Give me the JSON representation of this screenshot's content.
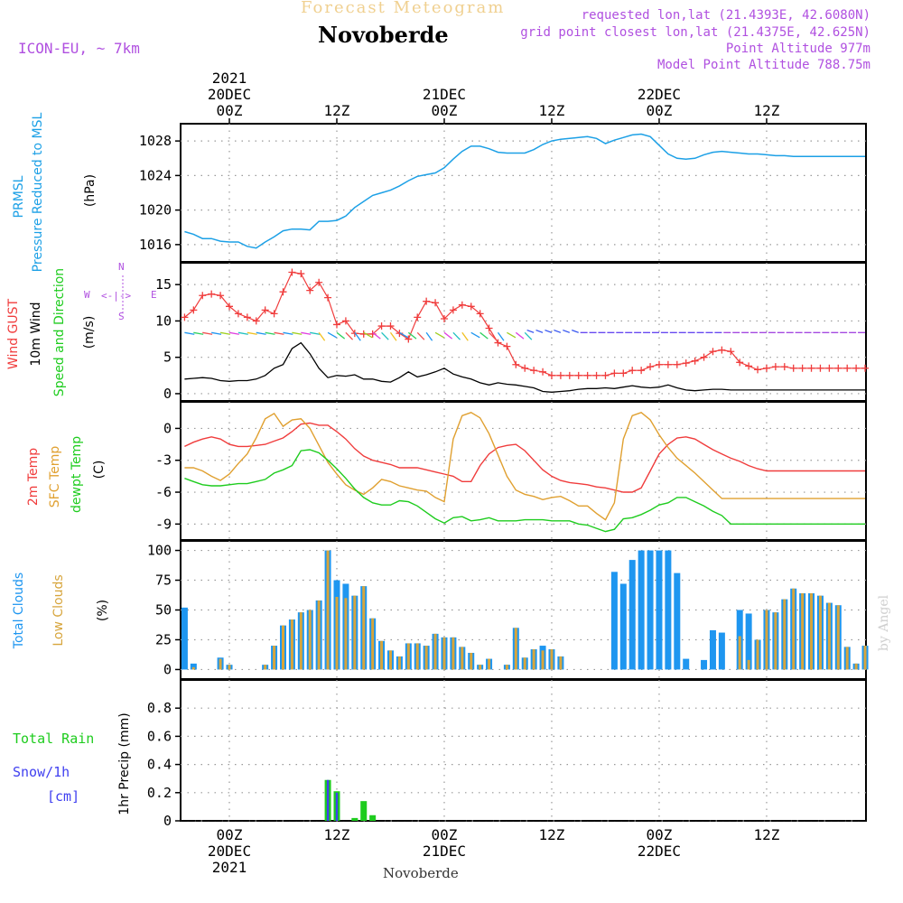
{
  "header": {
    "title_faint": "Forecast Meteogram",
    "location": "Novoberde",
    "model": "ICON-EU, ~ 7km",
    "requested": "requested lon,lat (21.4393E, 42.6080N)",
    "grid_point": "grid point closest lon,lat (21.4375E, 42.625N)",
    "altitude": "Point Altitude 977m",
    "model_altitude": "Model Point Altitude 788.75m",
    "footer": "Novoberde",
    "credit": "by Angel"
  },
  "time_axis": {
    "top_labels": [
      {
        "t": 0,
        "lines": [
          "2021",
          "20DEC",
          "00Z"
        ]
      },
      {
        "t": 12,
        "lines": [
          "12Z"
        ]
      },
      {
        "t": 24,
        "lines": [
          "21DEC",
          "00Z"
        ]
      },
      {
        "t": 36,
        "lines": [
          "12Z"
        ]
      },
      {
        "t": 48,
        "lines": [
          "22DEC",
          "00Z"
        ]
      },
      {
        "t": 60,
        "lines": [
          "12Z"
        ]
      }
    ],
    "bottom_labels": [
      {
        "t": 0,
        "lines": [
          "00Z",
          "20DEC",
          "2021"
        ]
      },
      {
        "t": 12,
        "lines": [
          "12Z"
        ]
      },
      {
        "t": 24,
        "lines": [
          "00Z",
          "21DEC"
        ]
      },
      {
        "t": 36,
        "lines": [
          "12Z"
        ]
      },
      {
        "t": 48,
        "lines": [
          "00Z",
          "22DEC"
        ]
      },
      {
        "t": 60,
        "lines": [
          "12Z"
        ]
      }
    ]
  },
  "labels": {
    "pressure": {
      "name": "PRMSL",
      "desc": "Pressure Reduced to MSL",
      "unit": "(hPa)"
    },
    "wind": {
      "gust": "Wind GUST",
      "wind10": "10m Wind",
      "dir": "Speed and Direction",
      "unit": "(m/s)",
      "compass_n": "N",
      "compass_s": "S",
      "compass_w": "W",
      "compass_e": "E"
    },
    "temp": {
      "t2m": "2m Temp",
      "sfc": "SFC Temp",
      "dew": "dewpt Temp",
      "unit": "(C)"
    },
    "clouds": {
      "total": "Total Clouds",
      "low": "Low Clouds",
      "unit": "(%)"
    },
    "precip": {
      "rain": "Total  Rain",
      "snow": "Snow/1h",
      "snow_unit": "[cm]",
      "axis": "1hr Precip (mm)"
    }
  },
  "colors": {
    "pressure": "#1ca0e6",
    "gust": "#f03c3c",
    "wind10": "#000000",
    "t2m": "#f03c3c",
    "sfc": "#e0a030",
    "dew": "#1ecc1e",
    "total_cloud": "#1e96f0",
    "low_cloud": "#d7a53c",
    "rain": "#1ecc1e",
    "snow": "#4040f0",
    "violet": "#b050e0",
    "faint": "#f0d090"
  },
  "chart_data": [
    {
      "type": "line",
      "title": "PRMSL Pressure Reduced to MSL",
      "ylabel": "(hPa)",
      "ylim": [
        1014,
        1030
      ],
      "yticks": [
        1016,
        1020,
        1024,
        1028
      ],
      "grid": true,
      "x_hours": [
        -5,
        -4,
        -3,
        -2,
        -1,
        0,
        1,
        2,
        3,
        4,
        5,
        6,
        7,
        8,
        9,
        10,
        11,
        12,
        13,
        14,
        15,
        16,
        17,
        18,
        19,
        20,
        21,
        22,
        23,
        24,
        25,
        26,
        27,
        28,
        29,
        30,
        31,
        32,
        33,
        34,
        35,
        36,
        37,
        38,
        39,
        40,
        41,
        42,
        43,
        44,
        45,
        46,
        47,
        48,
        49,
        50,
        51,
        52,
        53,
        54,
        55,
        56,
        57,
        58,
        59,
        60,
        61,
        62,
        63,
        64,
        65,
        66,
        67,
        68,
        69,
        70,
        71
      ],
      "series": [
        {
          "name": "PRMSL",
          "values": [
            1017.5,
            1017.2,
            1016.7,
            1016.7,
            1016.4,
            1016.3,
            1016.3,
            1015.8,
            1015.6,
            1016.3,
            1016.9,
            1017.6,
            1017.8,
            1017.8,
            1017.7,
            1018.7,
            1018.7,
            1018.8,
            1019.3,
            1020.3,
            1021.0,
            1021.7,
            1022.0,
            1022.3,
            1022.8,
            1023.4,
            1023.9,
            1024.1,
            1024.3,
            1024.9,
            1025.9,
            1026.8,
            1027.4,
            1027.4,
            1027.1,
            1026.7,
            1026.6,
            1026.6,
            1026.6,
            1027.0,
            1027.6,
            1028.0,
            1028.2,
            1028.3,
            1028.4,
            1028.5,
            1028.3,
            1027.7,
            1028.1,
            1028.4,
            1028.7,
            1028.8,
            1028.5,
            1027.5,
            1026.5,
            1026.0,
            1025.9,
            1026.0,
            1026.4,
            1026.7,
            1026.8,
            1026.7,
            1026.6,
            1026.5,
            1026.5,
            1026.4,
            1026.3,
            1026.3,
            1026.2,
            1026.2,
            1026.2,
            1026.2,
            1026.2,
            1026.2,
            1026.2,
            1026.2,
            1026.2
          ]
        }
      ]
    },
    {
      "type": "line",
      "title": "Wind GUST / 10m Wind Speed and Direction",
      "ylabel": "(m/s)",
      "ylim": [
        -1,
        18
      ],
      "yticks": [
        0,
        5,
        10,
        15
      ],
      "grid": true,
      "x_hours": [
        -5,
        -4,
        -3,
        -2,
        -1,
        0,
        1,
        2,
        3,
        4,
        5,
        6,
        7,
        8,
        9,
        10,
        11,
        12,
        13,
        14,
        15,
        16,
        17,
        18,
        19,
        20,
        21,
        22,
        23,
        24,
        25,
        26,
        27,
        28,
        29,
        30,
        31,
        32,
        33,
        34,
        35,
        36,
        37,
        38,
        39,
        40,
        41,
        42,
        43,
        44,
        45,
        46,
        47,
        48,
        49,
        50,
        51,
        52,
        53,
        54,
        55,
        56,
        57,
        58,
        59,
        60,
        61,
        62,
        63,
        64,
        65,
        66,
        67,
        68,
        69,
        70,
        71
      ],
      "series": [
        {
          "name": "Wind GUST",
          "values": [
            10.5,
            11.5,
            13.5,
            13.7,
            13.5,
            12.0,
            11.0,
            10.5,
            10.0,
            11.5,
            11.0,
            14.0,
            16.7,
            16.5,
            14.2,
            15.3,
            13.2,
            9.5,
            10.0,
            8.3,
            8.2,
            8.2,
            9.3,
            9.3,
            8.3,
            7.5,
            10.5,
            12.7,
            12.5,
            10.3,
            11.5,
            12.2,
            12.0,
            11.0,
            9.0,
            7.0,
            6.5,
            4.0,
            3.5,
            3.2,
            3.0,
            2.5,
            2.5,
            2.5,
            2.5,
            2.5,
            2.5,
            2.5,
            2.8,
            2.8,
            3.2,
            3.2,
            3.7,
            4.0,
            4.0,
            4.0,
            4.2,
            4.5,
            5.0,
            5.8,
            6.0,
            5.8,
            4.3,
            3.8,
            3.3,
            3.5,
            3.7,
            3.7,
            3.5,
            3.5,
            3.5,
            3.5,
            3.5,
            3.5,
            3.5,
            3.5,
            3.5
          ]
        },
        {
          "name": "10m Wind",
          "values": [
            2.0,
            2.1,
            2.2,
            2.1,
            1.8,
            1.7,
            1.8,
            1.8,
            2.0,
            2.5,
            3.5,
            4.0,
            6.2,
            7.0,
            5.5,
            3.5,
            2.2,
            2.5,
            2.4,
            2.6,
            2.0,
            2.0,
            1.7,
            1.6,
            2.2,
            3.0,
            2.3,
            2.6,
            3.0,
            3.5,
            2.7,
            2.3,
            2.0,
            1.5,
            1.2,
            1.5,
            1.3,
            1.2,
            1.0,
            0.8,
            0.3,
            0.2,
            0.3,
            0.4,
            0.6,
            0.7,
            0.7,
            0.8,
            0.7,
            0.9,
            1.1,
            0.9,
            0.8,
            0.9,
            1.2,
            0.8,
            0.5,
            0.4,
            0.5,
            0.6,
            0.6,
            0.5,
            0.5,
            0.5,
            0.5,
            0.5,
            0.5,
            0.5,
            0.5,
            0.5,
            0.5,
            0.5,
            0.5,
            0.5,
            0.5,
            0.5,
            0.5
          ]
        }
      ]
    },
    {
      "type": "line",
      "title": "2m Temp / SFC Temp / dewpt Temp",
      "ylabel": "(C)",
      "ylim": [
        -10.5,
        2.5
      ],
      "yticks": [
        -9,
        -6,
        -3,
        0
      ],
      "grid": true,
      "x_hours": [
        -5,
        -4,
        -3,
        -2,
        -1,
        0,
        1,
        2,
        3,
        4,
        5,
        6,
        7,
        8,
        9,
        10,
        11,
        12,
        13,
        14,
        15,
        16,
        17,
        18,
        19,
        20,
        21,
        22,
        23,
        24,
        25,
        26,
        27,
        28,
        29,
        30,
        31,
        32,
        33,
        34,
        35,
        36,
        37,
        38,
        39,
        40,
        41,
        42,
        43,
        44,
        45,
        46,
        47,
        48,
        49,
        50,
        51,
        52,
        53,
        54,
        55,
        56,
        57,
        58,
        59,
        60,
        61,
        62,
        63,
        64,
        65,
        66,
        67,
        68,
        69,
        70,
        71
      ],
      "series": [
        {
          "name": "2m Temp",
          "values": [
            -1.7,
            -1.3,
            -1.0,
            -0.8,
            -1.0,
            -1.5,
            -1.7,
            -1.7,
            -1.6,
            -1.5,
            -1.2,
            -0.9,
            -0.3,
            0.4,
            0.5,
            0.3,
            0.3,
            -0.3,
            -1.0,
            -1.9,
            -2.6,
            -3.0,
            -3.2,
            -3.4,
            -3.7,
            -3.7,
            -3.7,
            -3.9,
            -4.1,
            -4.3,
            -4.5,
            -5.0,
            -5.0,
            -3.5,
            -2.4,
            -1.8,
            -1.6,
            -1.5,
            -2.1,
            -3.0,
            -3.9,
            -4.5,
            -4.9,
            -5.1,
            -5.2,
            -5.3,
            -5.5,
            -5.6,
            -5.8,
            -6.0,
            -6.0,
            -5.6,
            -4.0,
            -2.4,
            -1.5,
            -0.9,
            -0.8,
            -1.0,
            -1.5,
            -2.0,
            -2.4,
            -2.8,
            -3.1,
            -3.5,
            -3.8,
            -4.0,
            -4.0,
            -4.0,
            -4.0,
            -4.0,
            -4.0,
            -4.0,
            -4.0,
            -4.0,
            -4.0,
            -4.0,
            -4.0
          ]
        },
        {
          "name": "SFC Temp",
          "values": [
            -3.7,
            -3.7,
            -4.0,
            -4.5,
            -4.9,
            -4.3,
            -3.3,
            -2.4,
            -0.9,
            0.9,
            1.4,
            0.2,
            0.8,
            0.9,
            0.0,
            -1.6,
            -3.2,
            -4.3,
            -5.3,
            -5.8,
            -6.2,
            -5.6,
            -4.8,
            -5.0,
            -5.4,
            -5.6,
            -5.8,
            -5.9,
            -6.5,
            -6.9,
            -1.0,
            1.2,
            1.5,
            1.0,
            -0.5,
            -2.5,
            -4.5,
            -5.8,
            -6.2,
            -6.4,
            -6.7,
            -6.5,
            -6.4,
            -6.8,
            -7.3,
            -7.3,
            -8.0,
            -8.6,
            -7.0,
            -1.0,
            1.2,
            1.5,
            0.8,
            -0.6,
            -1.8,
            -2.8,
            -3.5,
            -4.2,
            -5.0,
            -5.8,
            -6.6,
            -6.6,
            -6.6,
            -6.6,
            -6.6,
            -6.6,
            -6.6,
            -6.6,
            -6.6,
            -6.6,
            -6.6,
            -6.6,
            -6.6,
            -6.6,
            -6.6,
            -6.6,
            -6.6
          ]
        },
        {
          "name": "dewpt Temp",
          "values": [
            -4.7,
            -5.0,
            -5.3,
            -5.4,
            -5.4,
            -5.3,
            -5.2,
            -5.2,
            -5.0,
            -4.8,
            -4.2,
            -3.9,
            -3.5,
            -2.1,
            -2.0,
            -2.3,
            -3.0,
            -3.8,
            -4.7,
            -5.7,
            -6.5,
            -7.0,
            -7.2,
            -7.2,
            -6.8,
            -6.9,
            -7.3,
            -7.9,
            -8.5,
            -8.9,
            -8.4,
            -8.3,
            -8.7,
            -8.6,
            -8.4,
            -8.7,
            -8.7,
            -8.7,
            -8.6,
            -8.6,
            -8.6,
            -8.7,
            -8.7,
            -8.7,
            -9.0,
            -9.1,
            -9.4,
            -9.7,
            -9.5,
            -8.5,
            -8.4,
            -8.1,
            -7.7,
            -7.2,
            -7.0,
            -6.5,
            -6.5,
            -6.9,
            -7.3,
            -7.8,
            -8.2,
            -9.0,
            -9.0,
            -9.0,
            -9.0,
            -9.0,
            -9.0,
            -9.0,
            -9.0,
            -9.0,
            -9.0,
            -9.0,
            -9.0,
            -9.0,
            -9.0,
            -9.0,
            -9.0
          ]
        }
      ]
    },
    {
      "type": "bar",
      "title": "Total Clouds / Low Clouds",
      "ylabel": "(%)",
      "ylim": [
        -8,
        108
      ],
      "yticks": [
        0,
        25,
        50,
        75,
        100
      ],
      "grid": true,
      "x_hours": [
        -5,
        -4,
        -3,
        -2,
        -1,
        0,
        1,
        2,
        3,
        4,
        5,
        6,
        7,
        8,
        9,
        10,
        11,
        12,
        13,
        14,
        15,
        16,
        17,
        18,
        19,
        20,
        21,
        22,
        23,
        24,
        25,
        26,
        27,
        28,
        29,
        30,
        31,
        32,
        33,
        34,
        35,
        36,
        37,
        38,
        39,
        40,
        41,
        42,
        43,
        44,
        45,
        46,
        47,
        48,
        49,
        50,
        51,
        52,
        53,
        54,
        55,
        56,
        57,
        58,
        59,
        60,
        61,
        62,
        63,
        64,
        65,
        66,
        67,
        68,
        69,
        70,
        71
      ],
      "series": [
        {
          "name": "Total Clouds",
          "values": [
            52,
            5,
            0,
            0,
            10,
            4,
            0,
            0,
            0,
            4,
            20,
            37,
            42,
            48,
            50,
            58,
            100,
            75,
            72,
            62,
            70,
            43,
            24,
            16,
            11,
            22,
            22,
            20,
            30,
            27,
            27,
            19,
            14,
            4,
            9,
            0,
            4,
            35,
            10,
            17,
            20,
            17,
            11,
            0,
            0,
            0,
            0,
            0,
            82,
            72,
            92,
            100,
            100,
            100,
            100,
            81,
            9,
            0,
            8,
            33,
            31,
            0,
            50,
            47,
            25,
            50,
            48,
            59,
            68,
            64,
            64,
            62,
            56,
            54,
            19,
            5,
            20
          ]
        },
        {
          "name": "Low Clouds",
          "values": [
            0,
            2,
            0,
            0,
            9,
            4,
            0,
            0,
            0,
            4,
            20,
            37,
            42,
            48,
            50,
            58,
            100,
            61,
            60,
            62,
            70,
            43,
            24,
            16,
            11,
            22,
            22,
            20,
            30,
            27,
            27,
            19,
            14,
            4,
            9,
            0,
            4,
            35,
            10,
            17,
            16,
            17,
            11,
            0,
            0,
            0,
            0,
            0,
            0,
            0,
            0,
            0,
            0,
            0,
            0,
            0,
            0,
            0,
            0,
            0,
            0,
            0,
            28,
            8,
            25,
            50,
            48,
            59,
            68,
            64,
            64,
            62,
            56,
            54,
            19,
            5,
            20
          ]
        }
      ]
    },
    {
      "type": "bar",
      "title": "1hr Precip (mm)",
      "ylabel": "1hr Precip (mm)",
      "ylim": [
        0,
        1.0
      ],
      "yticks": [
        0,
        0.2,
        0.4,
        0.6,
        0.8
      ],
      "ytick_labels": [
        "0",
        "0.2",
        "0.4",
        "0.6",
        "0.8"
      ],
      "grid": true,
      "x_hours": [
        11,
        12,
        14,
        15,
        16
      ],
      "series": [
        {
          "name": "Total Rain",
          "values": [
            0.29,
            0.21,
            0.02,
            0.14,
            0.04
          ]
        },
        {
          "name": "Snow/1h",
          "values": [
            0.29,
            0.2,
            0,
            0,
            0
          ]
        }
      ]
    }
  ]
}
